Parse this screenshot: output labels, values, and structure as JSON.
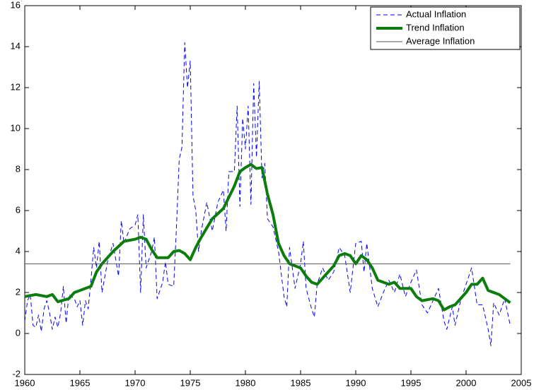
{
  "chart_data": {
    "type": "line",
    "xlim": [
      1960,
      2005
    ],
    "xticks": [
      1960,
      1965,
      1970,
      1975,
      1980,
      1985,
      1990,
      1995,
      2000,
      2005
    ],
    "ylim": [
      -2,
      16
    ],
    "yticks": [
      -2,
      0,
      2,
      4,
      6,
      8,
      10,
      12,
      14,
      16
    ],
    "legend": "upper right",
    "series": [
      {
        "name": "Actual Inflation",
        "color": "#0000ff",
        "style": "dashed",
        "x": [
          1960,
          1960.25,
          1960.5,
          1960.75,
          1961,
          1961.25,
          1961.5,
          1961.75,
          1962,
          1962.25,
          1962.5,
          1962.75,
          1963,
          1963.25,
          1963.5,
          1963.75,
          1964,
          1964.5,
          1964.75,
          1965,
          1965.25,
          1965.5,
          1965.75,
          1966,
          1966.25,
          1966.5,
          1966.75,
          1967,
          1967.5,
          1968,
          1968.5,
          1968.75,
          1969,
          1969.5,
          1970,
          1970.25,
          1970.5,
          1970.75,
          1971,
          1971.5,
          1971.75,
          1972,
          1972.5,
          1972.75,
          1973,
          1973.5,
          1973.75,
          1974,
          1974.25,
          1974.5,
          1974.75,
          1975,
          1975.25,
          1975.5,
          1975.75,
          1976,
          1976.5,
          1977,
          1977.5,
          1978,
          1978.25,
          1978.5,
          1979,
          1979.25,
          1979.5,
          1979.75,
          1980,
          1980.25,
          1980.5,
          1980.75,
          1981,
          1981.25,
          1981.5,
          1981.75,
          1982,
          1982.5,
          1983,
          1983.5,
          1983.75,
          1984,
          1984.5,
          1985,
          1985.25,
          1985.5,
          1986,
          1986.25,
          1986.5,
          1987,
          1987.5,
          1988,
          1988.5,
          1989,
          1989.5,
          1990,
          1990.5,
          1990.75,
          1991,
          1991.5,
          1992,
          1992.5,
          1993,
          1993.5,
          1994,
          1994.5,
          1995,
          1995.5,
          1996,
          1996.5,
          1997,
          1997.5,
          1998,
          1998.25,
          1998.75,
          1999,
          1999.5,
          2000,
          2000.5,
          2001,
          2001.5,
          2002,
          2002.25,
          2002.5,
          2003,
          2003.5,
          2004
        ],
        "values": [
          0.6,
          1.6,
          1.9,
          0.4,
          0.3,
          0.9,
          0.1,
          1.2,
          1.6,
          1.0,
          0.2,
          0.8,
          0.3,
          1.0,
          2.3,
          0.5,
          1.9,
          1.7,
          1.3,
          1.6,
          0.4,
          1.6,
          1.2,
          2.6,
          4.2,
          3.2,
          4.5,
          2.0,
          3.5,
          4.4,
          2.8,
          5.5,
          4.4,
          5.1,
          5.3,
          5.8,
          2.0,
          5.8,
          3.2,
          4.0,
          4.7,
          1.7,
          2.5,
          3.5,
          2.4,
          2.3,
          5.2,
          8.5,
          9.1,
          14.2,
          12.0,
          13.3,
          6.7,
          6.0,
          4.0,
          5.0,
          6.4,
          5.0,
          6.4,
          7.0,
          5.0,
          7.9,
          7.9,
          11.1,
          6.2,
          10.5,
          9.0,
          11.1,
          6.3,
          12.2,
          8.6,
          12.3,
          7.6,
          8.3,
          5.6,
          5.2,
          4.0,
          1.8,
          1.3,
          4.2,
          2.2,
          3.4,
          4.5,
          2.2,
          1.2,
          0.8,
          2.4,
          3.2,
          2.6,
          3.0,
          4.2,
          3.8,
          2.0,
          4.4,
          4.5,
          3.0,
          4.4,
          2.2,
          1.3,
          2.0,
          2.6,
          2.0,
          2.9,
          1.8,
          2.5,
          3.1,
          1.4,
          1.0,
          1.6,
          2.2,
          0.6,
          0.2,
          1.3,
          0.4,
          1.6,
          2.4,
          3.2,
          1.4,
          1.4,
          0.2,
          -0.6,
          1.5,
          0.9,
          1.7,
          0.4
        ]
      },
      {
        "name": "Trend Inflation",
        "color": "#0a7d0a",
        "style": "thick",
        "x": [
          1960,
          1961,
          1962,
          1962.5,
          1963,
          1964,
          1964.5,
          1965,
          1966,
          1966.5,
          1967,
          1968,
          1969,
          1970,
          1970.5,
          1971,
          1971.5,
          1972,
          1973,
          1973.5,
          1974,
          1974.5,
          1975,
          1975.5,
          1976,
          1977,
          1978,
          1979,
          1979.5,
          1980,
          1980.5,
          1981,
          1981.5,
          1982,
          1982.5,
          1983,
          1983.5,
          1984,
          1985,
          1985.5,
          1986,
          1986.5,
          1987,
          1988,
          1988.5,
          1989,
          1989.5,
          1990,
          1990.5,
          1991,
          1991.5,
          1992,
          1993,
          1993.5,
          1994,
          1995,
          1995.5,
          1996,
          1997,
          1997.5,
          1998,
          1998.5,
          1999,
          2000,
          2000.5,
          2001,
          2001.5,
          2002,
          2002.5,
          2003,
          2003.5,
          2004
        ],
        "values": [
          1.8,
          1.9,
          1.8,
          1.9,
          1.55,
          1.7,
          2.0,
          2.1,
          2.3,
          3.0,
          3.4,
          4.0,
          4.5,
          4.6,
          4.7,
          4.6,
          4.1,
          3.7,
          3.7,
          4.0,
          4.05,
          3.9,
          3.6,
          4.2,
          4.7,
          5.6,
          6.1,
          7.2,
          7.9,
          8.1,
          8.25,
          8.05,
          8.1,
          6.8,
          5.8,
          4.4,
          3.8,
          3.4,
          3.2,
          2.8,
          2.5,
          2.4,
          2.7,
          3.3,
          3.8,
          3.9,
          3.8,
          3.4,
          3.8,
          3.6,
          3.2,
          2.6,
          2.4,
          2.5,
          2.2,
          2.2,
          1.8,
          1.6,
          1.7,
          1.6,
          1.15,
          1.3,
          1.4,
          2.0,
          2.4,
          2.4,
          2.7,
          2.1,
          2.0,
          1.9,
          1.7,
          1.5
        ]
      },
      {
        "name": "Average Inflation",
        "color": "#555555",
        "style": "thin",
        "x": [
          1960,
          2004
        ],
        "values": [
          3.4,
          3.4
        ]
      }
    ]
  }
}
